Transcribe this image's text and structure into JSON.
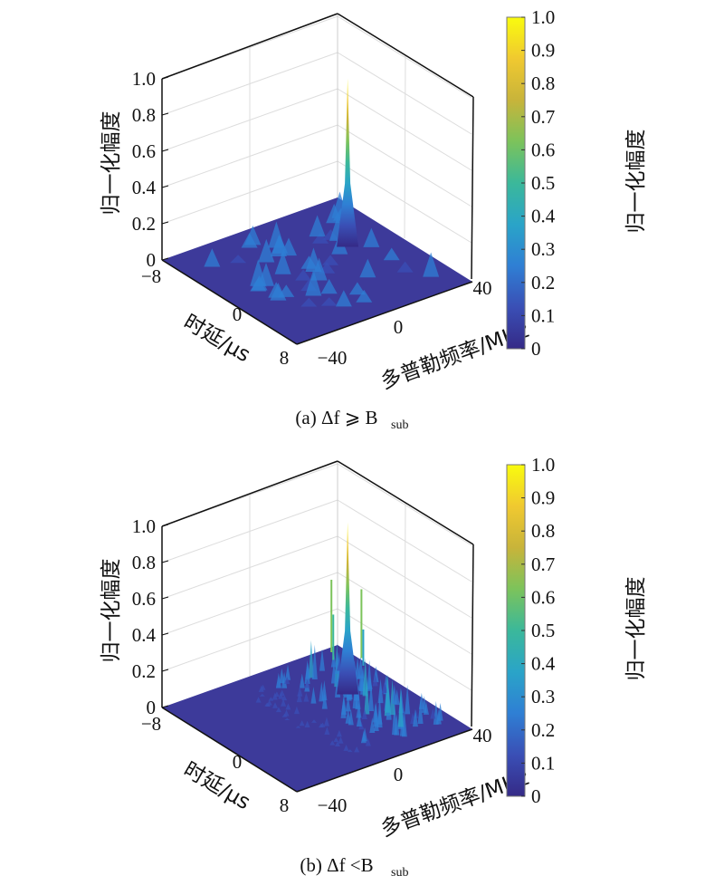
{
  "chart_data": [
    {
      "type": "surface",
      "caption": "(a) Δf ⩾ B",
      "caption_sub": "sub",
      "xlabel": "时延/μs",
      "ylabel": "多普勒频率/MHz",
      "zlabel": "归一化幅度",
      "colorbar_label": "归一化幅度",
      "xlim": [
        -8,
        8
      ],
      "ylim": [
        -40,
        40
      ],
      "zlim": [
        0,
        1
      ],
      "xticks": [
        "−8",
        "0",
        "8"
      ],
      "yticks": [
        "−40",
        "0",
        "40"
      ],
      "zticks": [
        "0",
        "0.2",
        "0.4",
        "0.6",
        "0.8",
        "1.0"
      ],
      "colorbar_ticks": [
        "0",
        "0.1",
        "0.2",
        "0.3",
        "0.4",
        "0.5",
        "0.6",
        "0.7",
        "0.8",
        "0.9",
        "1.0"
      ],
      "peak": {
        "delay": -1.6,
        "doppler": 20,
        "value": 0.93
      },
      "sidelobe_level": 0.15,
      "grid": true
    },
    {
      "type": "surface",
      "caption": "(b) Δf <B",
      "caption_sub": "sub",
      "xlabel": "时延/μs",
      "ylabel": "多普勒频率/MHz",
      "zlabel": "归一化幅度",
      "colorbar_label": "归一化幅度",
      "xlim": [
        -8,
        8
      ],
      "ylim": [
        -40,
        40
      ],
      "zlim": [
        0,
        1
      ],
      "xticks": [
        "−8",
        "0",
        "8"
      ],
      "yticks": [
        "−40",
        "0",
        "40"
      ],
      "zticks": [
        "0",
        "0.2",
        "0.4",
        "0.6",
        "0.8",
        "1.0"
      ],
      "colorbar_ticks": [
        "0",
        "0.1",
        "0.2",
        "0.3",
        "0.4",
        "0.5",
        "0.6",
        "0.7",
        "0.8",
        "0.9",
        "1.0"
      ],
      "peak": {
        "delay": -1.6,
        "doppler": 20,
        "value": 0.95
      },
      "sidelobe_level": 0.3,
      "grid": true
    }
  ]
}
